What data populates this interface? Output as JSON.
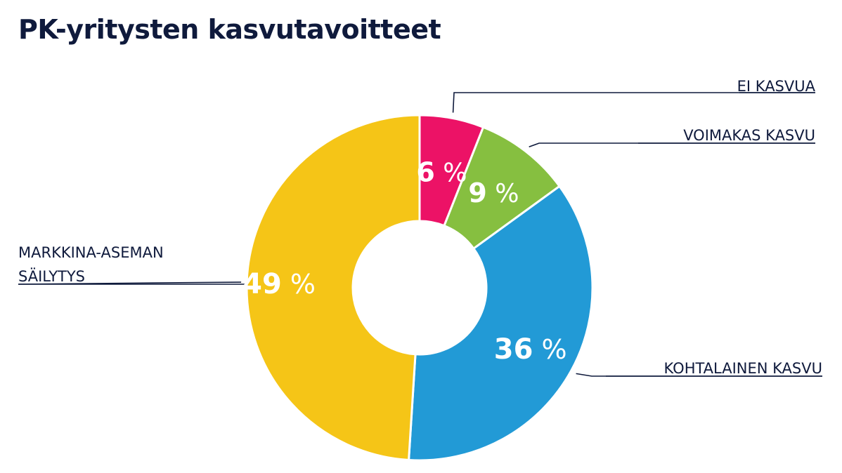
{
  "title": "PK-yritysten kasvutavoitteet",
  "chart_data": {
    "type": "pie",
    "variant": "donut",
    "title": "PK-yritysten kasvutavoitteet",
    "unit": "%",
    "slices": [
      {
        "key": "ei",
        "label_lines": [
          "EI KASVUA"
        ],
        "value": 6,
        "value_text": "6",
        "color": "#ec1266"
      },
      {
        "key": "voimakas",
        "label_lines": [
          "VOIMAKAS KASVU"
        ],
        "value": 9,
        "value_text": "9",
        "color": "#86bf40"
      },
      {
        "key": "kohtalainen",
        "label_lines": [
          "KOHTALAINEN KASVU"
        ],
        "value": 36,
        "value_text": "36",
        "color": "#229ad6"
      },
      {
        "key": "markkina",
        "label_lines": [
          "MARKKINA-ASEMAN",
          "SÄILYTYS"
        ],
        "value": 49,
        "value_text": "49",
        "color": "#f5c517"
      }
    ]
  }
}
